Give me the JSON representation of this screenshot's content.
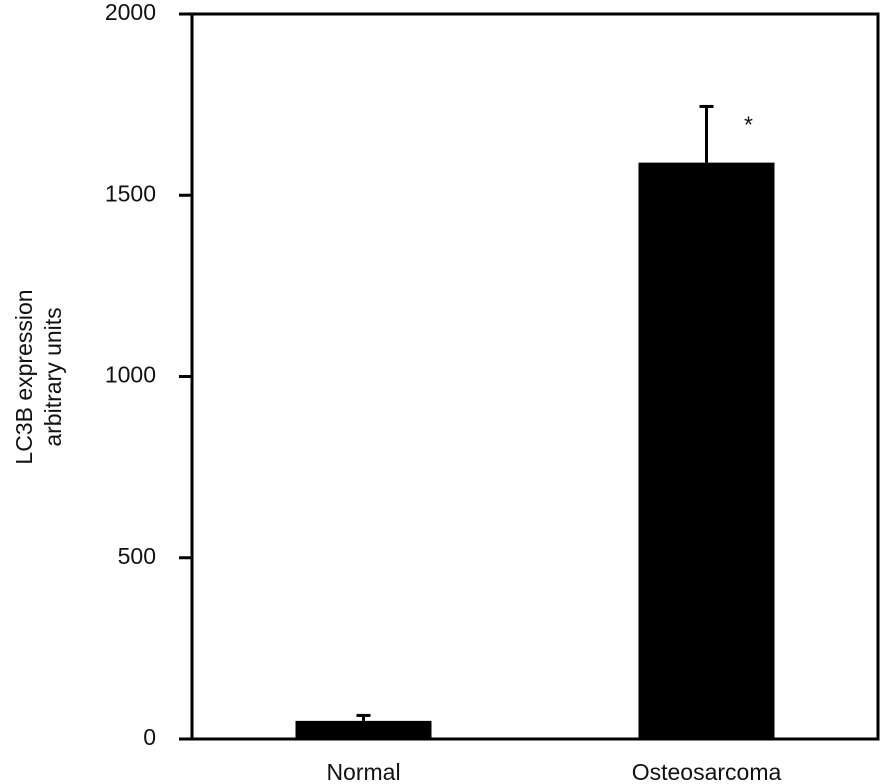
{
  "chart_data": {
    "type": "bar",
    "y_label": [
      "LC3B expression",
      "arbitrary units"
    ],
    "categories": [
      "Normal",
      "Osteosarcoma"
    ],
    "values": [
      50,
      1590
    ],
    "errors": [
      15,
      155
    ],
    "color": "#000000",
    "annotation": "*",
    "ylim": [
      0,
      2000
    ],
    "yticks": [
      0,
      500,
      1000,
      1500,
      2000
    ],
    "grid": false
  }
}
